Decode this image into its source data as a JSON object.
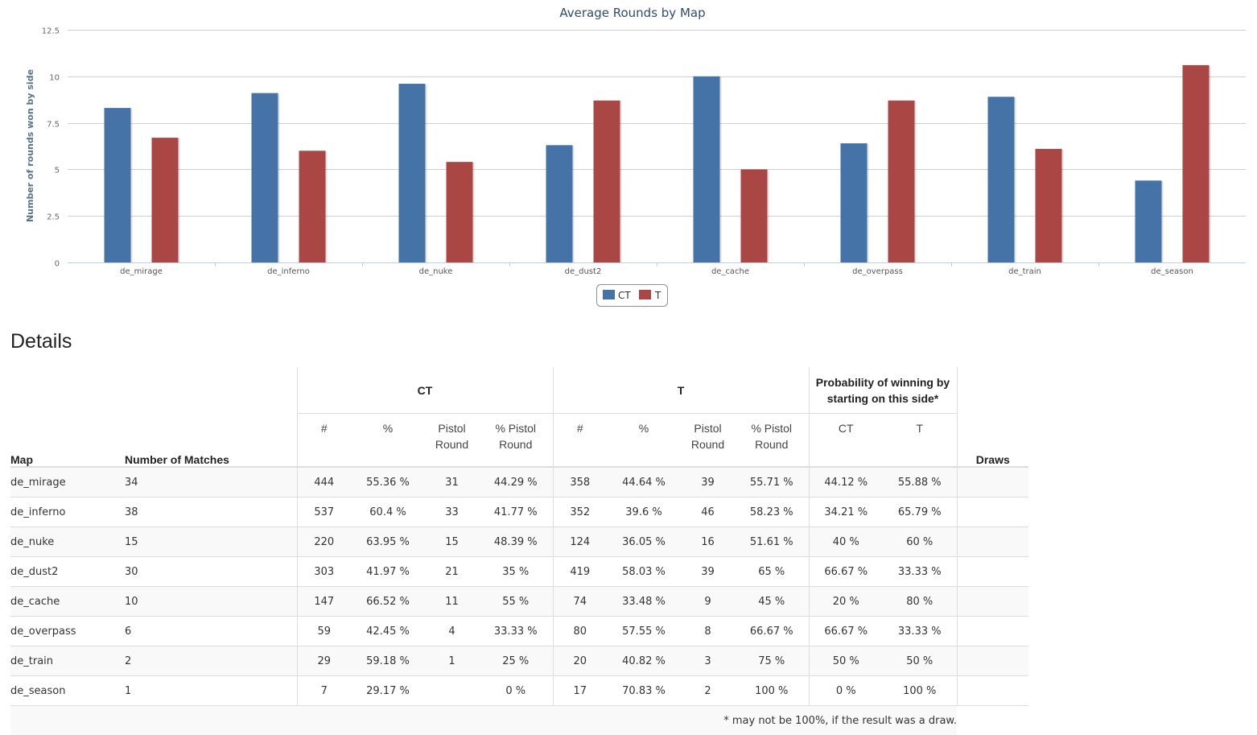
{
  "chart_data": {
    "type": "bar",
    "title": "Average Rounds by Map",
    "ylabel": "Number of rounds won by side",
    "xlabel": "",
    "ylim": [
      0,
      12.5
    ],
    "yticks": [
      "0",
      "2.5",
      "5",
      "7.5",
      "10",
      "12.5"
    ],
    "categories": [
      "de_mirage",
      "de_inferno",
      "de_nuke",
      "de_dust2",
      "de_cache",
      "de_overpass",
      "de_train",
      "de_season"
    ],
    "series": [
      {
        "name": "CT",
        "color": "#4572a7",
        "values": [
          8.3,
          9.1,
          9.6,
          6.3,
          10.0,
          6.4,
          8.9,
          4.4
        ]
      },
      {
        "name": "T",
        "color": "#aa4643",
        "values": [
          6.7,
          6.0,
          5.4,
          8.7,
          5.0,
          8.7,
          6.1,
          10.6
        ]
      }
    ],
    "grid": true,
    "legend": "bottom-center"
  },
  "details": {
    "heading": "Details",
    "headers": {
      "map": "Map",
      "matches": "Number of Matches",
      "ct_group": "CT",
      "t_group": "T",
      "prob_group_line1": "Probability of winning by",
      "prob_group_line2": "starting on this side*",
      "draws": "Draws",
      "sub": {
        "count": "#",
        "pct": "%",
        "pistol_l1": "Pistol",
        "pistol_l2": "Round",
        "pctpistol_l1": "% Pistol",
        "pctpistol_l2": "Round",
        "prob_ct": "CT",
        "prob_t": "T"
      }
    },
    "rows": [
      {
        "map": "de_mirage",
        "matches": "34",
        "ct_count": "444",
        "ct_pct": "55.36 %",
        "ct_pistol": "31",
        "ct_pistol_pct": "44.29 %",
        "t_count": "358",
        "t_pct": "44.64 %",
        "t_pistol": "39",
        "t_pistol_pct": "55.71 %",
        "prob_ct": "44.12 %",
        "prob_t": "55.88 %",
        "draws": ""
      },
      {
        "map": "de_inferno",
        "matches": "38",
        "ct_count": "537",
        "ct_pct": "60.4 %",
        "ct_pistol": "33",
        "ct_pistol_pct": "41.77 %",
        "t_count": "352",
        "t_pct": "39.6 %",
        "t_pistol": "46",
        "t_pistol_pct": "58.23 %",
        "prob_ct": "34.21 %",
        "prob_t": "65.79 %",
        "draws": ""
      },
      {
        "map": "de_nuke",
        "matches": "15",
        "ct_count": "220",
        "ct_pct": "63.95 %",
        "ct_pistol": "15",
        "ct_pistol_pct": "48.39 %",
        "t_count": "124",
        "t_pct": "36.05 %",
        "t_pistol": "16",
        "t_pistol_pct": "51.61 %",
        "prob_ct": "40 %",
        "prob_t": "60 %",
        "draws": ""
      },
      {
        "map": "de_dust2",
        "matches": "30",
        "ct_count": "303",
        "ct_pct": "41.97 %",
        "ct_pistol": "21",
        "ct_pistol_pct": "35 %",
        "t_count": "419",
        "t_pct": "58.03 %",
        "t_pistol": "39",
        "t_pistol_pct": "65 %",
        "prob_ct": "66.67 %",
        "prob_t": "33.33 %",
        "draws": ""
      },
      {
        "map": "de_cache",
        "matches": "10",
        "ct_count": "147",
        "ct_pct": "66.52 %",
        "ct_pistol": "11",
        "ct_pistol_pct": "55 %",
        "t_count": "74",
        "t_pct": "33.48 %",
        "t_pistol": "9",
        "t_pistol_pct": "45 %",
        "prob_ct": "20 %",
        "prob_t": "80 %",
        "draws": ""
      },
      {
        "map": "de_overpass",
        "matches": "6",
        "ct_count": "59",
        "ct_pct": "42.45 %",
        "ct_pistol": "4",
        "ct_pistol_pct": "33.33 %",
        "t_count": "80",
        "t_pct": "57.55 %",
        "t_pistol": "8",
        "t_pistol_pct": "66.67 %",
        "prob_ct": "66.67 %",
        "prob_t": "33.33 %",
        "draws": ""
      },
      {
        "map": "de_train",
        "matches": "2",
        "ct_count": "29",
        "ct_pct": "59.18 %",
        "ct_pistol": "1",
        "ct_pistol_pct": "25 %",
        "t_count": "20",
        "t_pct": "40.82 %",
        "t_pistol": "3",
        "t_pistol_pct": "75 %",
        "prob_ct": "50 %",
        "prob_t": "50 %",
        "draws": ""
      },
      {
        "map": "de_season",
        "matches": "1",
        "ct_count": "7",
        "ct_pct": "29.17 %",
        "ct_pistol": "",
        "ct_pistol_pct": "0 %",
        "t_count": "17",
        "t_pct": "70.83 %",
        "t_pistol": "2",
        "t_pistol_pct": "100 %",
        "prob_ct": "0 %",
        "prob_t": "100 %",
        "draws": ""
      }
    ],
    "footnote": "* may not be 100%, if the result was a draw."
  }
}
